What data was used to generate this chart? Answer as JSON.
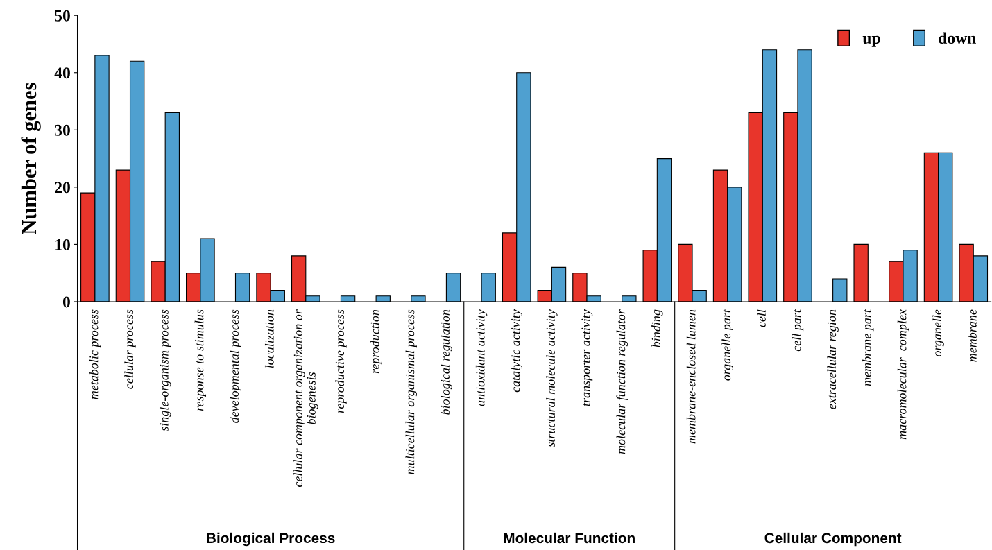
{
  "chart_data": {
    "type": "bar",
    "ylabel": "Number of genes",
    "categories": [
      "metabolic process",
      "cellular process",
      "single-organism process",
      "response to stimulus",
      "developmental process",
      "localization",
      "cellular component organization or\nbiogenesis",
      "reproductive process",
      "reproduction",
      "multicellular organismal process",
      "biological regulation",
      "antioxidant activity",
      "catalytic activity",
      "structural molecule activity",
      "transporter activity",
      "molecular function regulator",
      "binding",
      "membrane-enclosed lumen",
      "organelle part",
      "cell",
      "cell part",
      "extracellular region",
      "membrane part",
      "macromolecular  complex",
      "organelle",
      "membrane"
    ],
    "series": [
      {
        "name": "up",
        "color": "#e8352b",
        "values": [
          19,
          23,
          7,
          5,
          0,
          5,
          8,
          0,
          0,
          0,
          0,
          0,
          12,
          2,
          5,
          0,
          9,
          10,
          23,
          33,
          33,
          0,
          10,
          7,
          26,
          10
        ]
      },
      {
        "name": "down",
        "color": "#4fa0d0",
        "values": [
          43,
          42,
          33,
          11,
          5,
          2,
          1,
          1,
          1,
          1,
          5,
          5,
          40,
          6,
          1,
          1,
          25,
          2,
          20,
          44,
          44,
          4,
          0,
          9,
          26,
          8
        ]
      }
    ],
    "ylim": [
      0,
      50
    ],
    "yticks": [
      0,
      10,
      20,
      30,
      40,
      50
    ],
    "grid": false,
    "legend": "top right",
    "annotations": [
      "Biological Process",
      "Molecular Function",
      "Cellular Component"
    ]
  }
}
